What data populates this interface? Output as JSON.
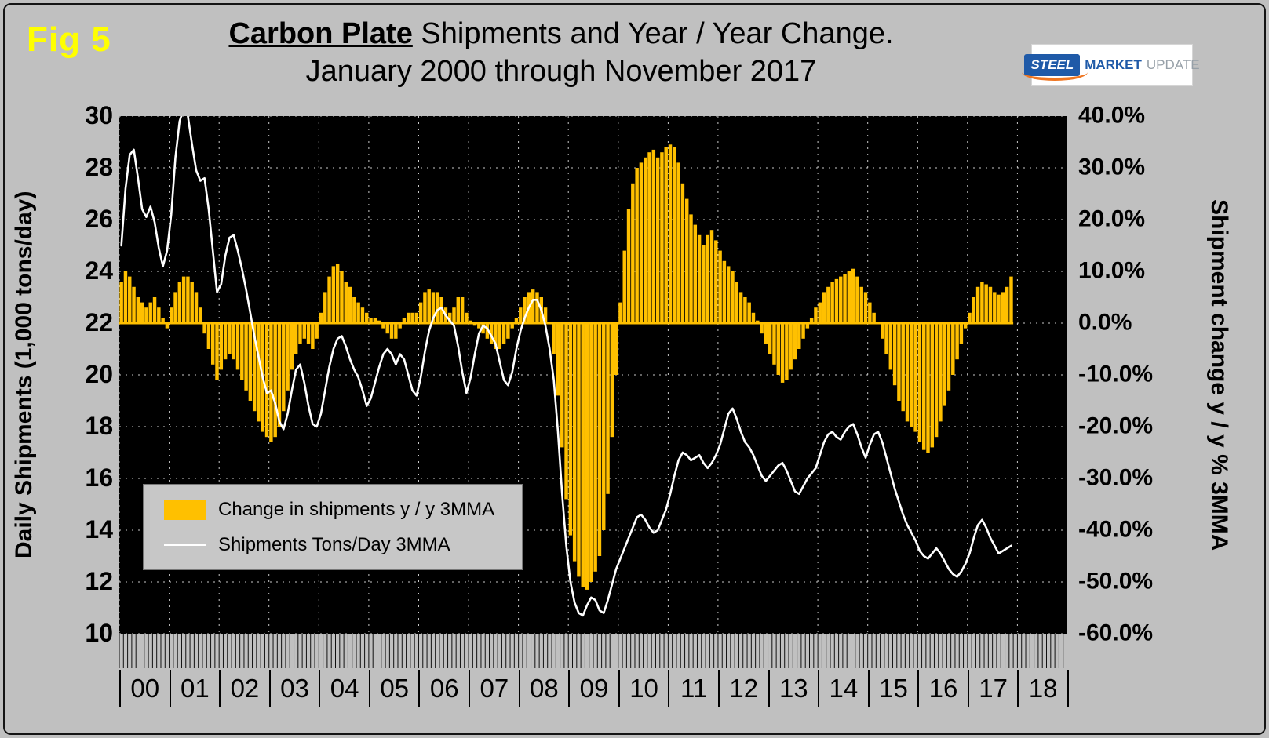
{
  "figure": {
    "fig_label": "Fig 5"
  },
  "logo": {
    "steel": "STEEL",
    "market": "MARKET",
    "update": "UPDATE"
  },
  "colors": {
    "background": "#c0c0c0",
    "fig_label": "#ffff00",
    "plot_background": "#000000",
    "grid": "#c9c9c9",
    "bar": "#FFC000",
    "line": "#FFFFFF"
  },
  "chart_data": {
    "type": "combo",
    "title_strong": "Carbon Plate",
    "title_rest": " Shipments and Year / Year Change.",
    "subtitle": "January 2000 through November 2017",
    "frequency": "monthly",
    "x_start": "2000-01",
    "x_end": "2017-11",
    "plot_bg": "#000000",
    "grid_color": "#c9c9c9",
    "left_axis": {
      "label": "Daily Shipments (1,000 tons/day)",
      "min": 10,
      "max": 30,
      "step": 2,
      "ticks": [
        "30",
        "28",
        "26",
        "24",
        "22",
        "20",
        "18",
        "16",
        "14",
        "12",
        "10"
      ]
    },
    "right_axis": {
      "label": "Shipment change y / y % 3MMA",
      "min": -60,
      "max": 40,
      "step": 10,
      "ticks": [
        "40.0%",
        "30.0%",
        "20.0%",
        "10.0%",
        "0.0%",
        "-10.0%",
        "-20.0%",
        "-30.0%",
        "-40.0%",
        "-50.0%",
        "-60.0%"
      ]
    },
    "x_axis": {
      "year_labels": [
        "00",
        "01",
        "02",
        "03",
        "04",
        "05",
        "06",
        "07",
        "08",
        "09",
        "10",
        "11",
        "12",
        "13",
        "14",
        "15",
        "16",
        "17",
        "18"
      ],
      "months_per_year": 12,
      "total_months_span": 228
    },
    "legend_position": "inside-lower-left",
    "series": [
      {
        "name": "Change in shipments y / y 3MMA",
        "type": "bar",
        "axis": "right",
        "unit": "%",
        "color": "#FFC000",
        "values": [
          8,
          10,
          9,
          7,
          5,
          4,
          3,
          4,
          5,
          3,
          1,
          -1,
          3,
          6,
          8,
          9,
          9,
          8,
          6,
          3,
          -2,
          -5,
          -8,
          -11,
          -9,
          -7,
          -6,
          -7,
          -9,
          -11,
          -13,
          -15,
          -17,
          -19,
          -21,
          -22,
          -23,
          -22,
          -20,
          -17,
          -13,
          -9,
          -6,
          -4,
          -3,
          -4,
          -5,
          -3,
          2,
          6,
          9,
          11,
          11.5,
          10,
          8,
          7,
          5,
          4,
          3,
          2,
          1,
          1,
          0.5,
          -1,
          -2,
          -3,
          -3,
          -1,
          1,
          2,
          2,
          2,
          4,
          6,
          6.5,
          6,
          6,
          5,
          3,
          2,
          3,
          5,
          5,
          2,
          0.5,
          -0.5,
          -1,
          -2,
          -3,
          -4,
          -5,
          -5,
          -4,
          -3,
          -1,
          1,
          3,
          5,
          6,
          6.5,
          6,
          5,
          3,
          0,
          -6,
          -14,
          -24,
          -34,
          -41,
          -46,
          -49,
          -51,
          -51.5,
          -50,
          -48,
          -45,
          -40,
          -33,
          -22,
          -10,
          4,
          14,
          22,
          27,
          30,
          31,
          32,
          33,
          33.5,
          32,
          33,
          34,
          34.5,
          34,
          31,
          27,
          24,
          21,
          19,
          17,
          15,
          17,
          18,
          16,
          14,
          12,
          11,
          10,
          8,
          6,
          5,
          4,
          2,
          0.5,
          -2,
          -4,
          -6,
          -8,
          -10,
          -11.5,
          -11,
          -9,
          -7,
          -5,
          -3,
          -1,
          1,
          3,
          4,
          6,
          7,
          8,
          8.5,
          9,
          9.5,
          10,
          10.5,
          9,
          7,
          6,
          4,
          2,
          0,
          -3,
          -6,
          -9,
          -12,
          -15,
          -17,
          -19,
          -20,
          -21,
          -23,
          -24.5,
          -25,
          -24,
          -22,
          -19,
          -16,
          -13,
          -10,
          -7,
          -4,
          -1,
          2,
          5,
          7,
          8,
          7.5,
          7,
          6,
          5.5,
          6,
          7,
          9
        ]
      },
      {
        "name": "Shipments Tons/Day 3MMA",
        "type": "line",
        "axis": "left",
        "unit": "1,000 tons/day",
        "color": "#FFFFFF",
        "values": [
          25.0,
          27.2,
          28.5,
          28.7,
          27.6,
          26.4,
          26.1,
          26.5,
          25.9,
          24.9,
          24.2,
          24.8,
          26.2,
          28.4,
          29.8,
          30.3,
          30.0,
          28.9,
          27.9,
          27.5,
          27.6,
          26.4,
          24.8,
          23.2,
          23.5,
          24.6,
          25.3,
          25.4,
          24.8,
          24.1,
          23.3,
          22.4,
          21.5,
          20.7,
          19.9,
          19.3,
          19.4,
          18.9,
          18.2,
          17.9,
          18.5,
          19.4,
          20.2,
          20.4,
          19.7,
          18.8,
          18.1,
          18.0,
          18.5,
          19.4,
          20.3,
          21.0,
          21.4,
          21.5,
          21.1,
          20.6,
          20.2,
          19.9,
          19.4,
          18.8,
          19.1,
          19.7,
          20.3,
          20.8,
          21.0,
          20.8,
          20.4,
          20.8,
          20.6,
          20.0,
          19.4,
          19.2,
          19.9,
          20.9,
          21.7,
          22.2,
          22.5,
          22.6,
          22.3,
          22.1,
          21.9,
          21.1,
          20.1,
          19.3,
          19.9,
          20.8,
          21.6,
          21.9,
          21.8,
          21.5,
          21.2,
          20.5,
          19.8,
          19.6,
          20.1,
          21.0,
          21.7,
          22.2,
          22.6,
          22.9,
          22.9,
          22.5,
          21.9,
          21.0,
          19.8,
          17.8,
          15.4,
          13.4,
          12.0,
          11.2,
          10.8,
          10.7,
          11.1,
          11.4,
          11.3,
          10.9,
          10.8,
          11.3,
          11.9,
          12.5,
          12.9,
          13.3,
          13.7,
          14.1,
          14.5,
          14.6,
          14.4,
          14.1,
          13.9,
          14.0,
          14.4,
          14.8,
          15.4,
          16.1,
          16.7,
          17.0,
          16.9,
          16.7,
          16.8,
          16.9,
          16.6,
          16.4,
          16.6,
          16.9,
          17.3,
          17.9,
          18.5,
          18.7,
          18.3,
          17.8,
          17.4,
          17.2,
          16.9,
          16.5,
          16.1,
          15.9,
          16.1,
          16.3,
          16.5,
          16.6,
          16.3,
          15.9,
          15.5,
          15.4,
          15.7,
          16.0,
          16.2,
          16.4,
          16.9,
          17.4,
          17.7,
          17.8,
          17.6,
          17.5,
          17.8,
          18.0,
          18.1,
          17.7,
          17.2,
          16.8,
          17.3,
          17.7,
          17.8,
          17.4,
          16.8,
          16.2,
          15.6,
          15.1,
          14.6,
          14.2,
          13.9,
          13.6,
          13.2,
          13.0,
          12.9,
          13.1,
          13.3,
          13.1,
          12.8,
          12.5,
          12.3,
          12.2,
          12.4,
          12.7,
          13.1,
          13.7,
          14.2,
          14.4,
          14.1,
          13.7,
          13.4,
          13.1,
          13.2,
          13.3,
          13.4
        ]
      }
    ]
  }
}
